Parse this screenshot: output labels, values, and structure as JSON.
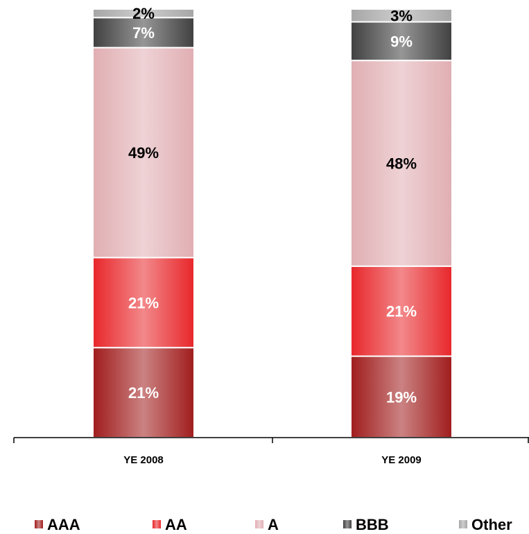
{
  "chart_data": {
    "type": "bar",
    "stacked": true,
    "categories": [
      "YE 2008",
      "YE 2009"
    ],
    "series": [
      {
        "name": "AAA",
        "values": [
          21,
          19
        ],
        "labels": [
          "21%",
          "19%"
        ],
        "color": "#a01c1c",
        "label_color": "#ffffff"
      },
      {
        "name": "AA",
        "values": [
          21,
          21
        ],
        "labels": [
          "21%",
          "21%"
        ],
        "color": "#e8262a",
        "label_color": "#ffffff"
      },
      {
        "name": "A",
        "values": [
          49,
          48
        ],
        "labels": [
          "49%",
          "48%"
        ],
        "color": "#e0aeb2",
        "label_color": "#000000"
      },
      {
        "name": "BBB",
        "values": [
          7,
          9
        ],
        "labels": [
          "7%",
          "9%"
        ],
        "color": "#404040",
        "label_color": "#ffffff"
      },
      {
        "name": "Other",
        "values": [
          2,
          3
        ],
        "labels": [
          "2%",
          "3%"
        ],
        "color": "#a6a6a6",
        "label_color": "#000000"
      }
    ],
    "ylim": [
      0,
      100
    ],
    "grid": false,
    "legend_position": "bottom"
  }
}
